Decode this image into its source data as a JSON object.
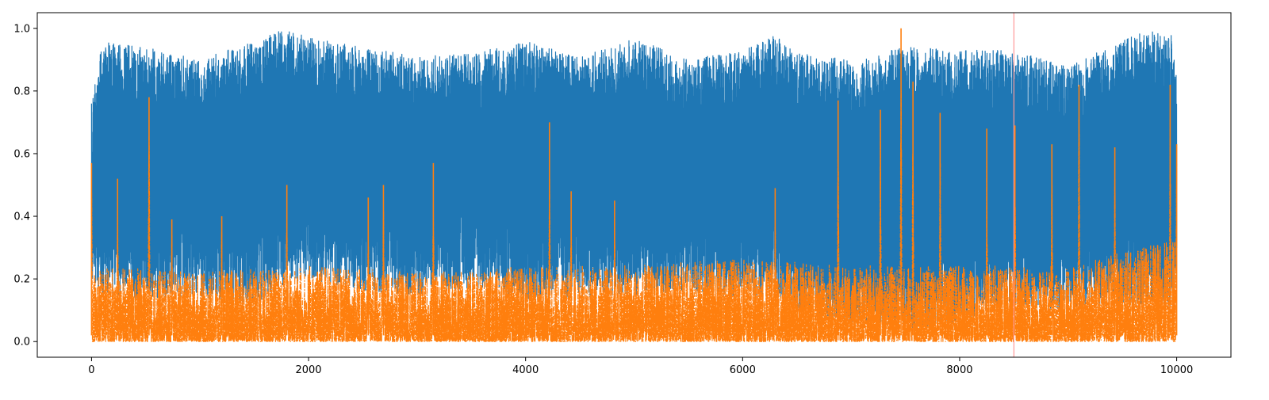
{
  "chart_data": {
    "type": "line",
    "title": "",
    "xlabel": "",
    "ylabel": "",
    "xlim": [
      -500,
      10500
    ],
    "ylim": [
      -0.05,
      1.05
    ],
    "x_ticks": [
      0,
      2000,
      4000,
      6000,
      8000,
      10000
    ],
    "x_tick_labels": [
      "0",
      "2000",
      "4000",
      "6000",
      "8000",
      "10000"
    ],
    "y_ticks": [
      0.0,
      0.2,
      0.4,
      0.6,
      0.8,
      1.0
    ],
    "y_tick_labels": [
      "0.0",
      "0.2",
      "0.4",
      "0.6",
      "0.8",
      "1.0"
    ],
    "grid": false,
    "legend": "none",
    "n_points": 10000,
    "x_range": [
      0,
      10000
    ],
    "vline": {
      "x": 8500,
      "color": "#ff9999"
    },
    "series": [
      {
        "color": "#1f77b4",
        "style": "solid",
        "envelope": {
          "x": [
            0,
            100,
            500,
            1000,
            1500,
            1800,
            2000,
            2500,
            3000,
            3500,
            4000,
            4500,
            5000,
            5500,
            6000,
            6300,
            6500,
            7000,
            7500,
            8000,
            8500,
            9000,
            9500,
            9700,
            9950,
            10000
          ],
          "upper": [
            0.76,
            0.96,
            0.94,
            0.9,
            0.96,
            1.0,
            0.97,
            0.94,
            0.91,
            0.92,
            0.96,
            0.91,
            0.97,
            0.9,
            0.93,
            0.98,
            0.92,
            0.9,
            0.94,
            0.93,
            0.93,
            0.88,
            0.96,
            0.99,
            0.99,
            0.84
          ],
          "lower": [
            0.2,
            0.15,
            0.13,
            0.14,
            0.12,
            0.18,
            0.2,
            0.16,
            0.15,
            0.17,
            0.13,
            0.14,
            0.15,
            0.16,
            0.14,
            0.15,
            0.1,
            0.06,
            0.04,
            0.06,
            0.12,
            0.1,
            0.12,
            0.12,
            0.1,
            0.2
          ]
        }
      },
      {
        "color": "#ff7f0e",
        "style": "dashdot",
        "envelope": {
          "x": [
            0,
            1000,
            2000,
            3000,
            4000,
            5000,
            6000,
            7000,
            8000,
            9000,
            10000
          ],
          "upper": [
            0.22,
            0.2,
            0.22,
            0.2,
            0.22,
            0.22,
            0.24,
            0.22,
            0.22,
            0.22,
            0.3
          ],
          "lower": [
            0.0,
            0.0,
            0.0,
            0.0,
            0.0,
            0.0,
            0.0,
            0.0,
            0.0,
            0.0,
            0.0
          ]
        },
        "spikes": [
          {
            "x": 0,
            "y": 0.57
          },
          {
            "x": 240,
            "y": 0.52
          },
          {
            "x": 530,
            "y": 0.78
          },
          {
            "x": 740,
            "y": 0.39
          },
          {
            "x": 1200,
            "y": 0.4
          },
          {
            "x": 1800,
            "y": 0.5
          },
          {
            "x": 2550,
            "y": 0.46
          },
          {
            "x": 2690,
            "y": 0.5
          },
          {
            "x": 3150,
            "y": 0.57
          },
          {
            "x": 4220,
            "y": 0.7
          },
          {
            "x": 4420,
            "y": 0.48
          },
          {
            "x": 4820,
            "y": 0.45
          },
          {
            "x": 6300,
            "y": 0.49
          },
          {
            "x": 6880,
            "y": 0.77
          },
          {
            "x": 7270,
            "y": 0.74
          },
          {
            "x": 7460,
            "y": 1.0
          },
          {
            "x": 7570,
            "y": 0.83
          },
          {
            "x": 7820,
            "y": 0.73
          },
          {
            "x": 8250,
            "y": 0.68
          },
          {
            "x": 8510,
            "y": 0.69
          },
          {
            "x": 8850,
            "y": 0.63
          },
          {
            "x": 9100,
            "y": 0.82
          },
          {
            "x": 9430,
            "y": 0.62
          },
          {
            "x": 9940,
            "y": 0.82
          },
          {
            "x": 10000,
            "y": 0.63
          }
        ]
      }
    ]
  }
}
